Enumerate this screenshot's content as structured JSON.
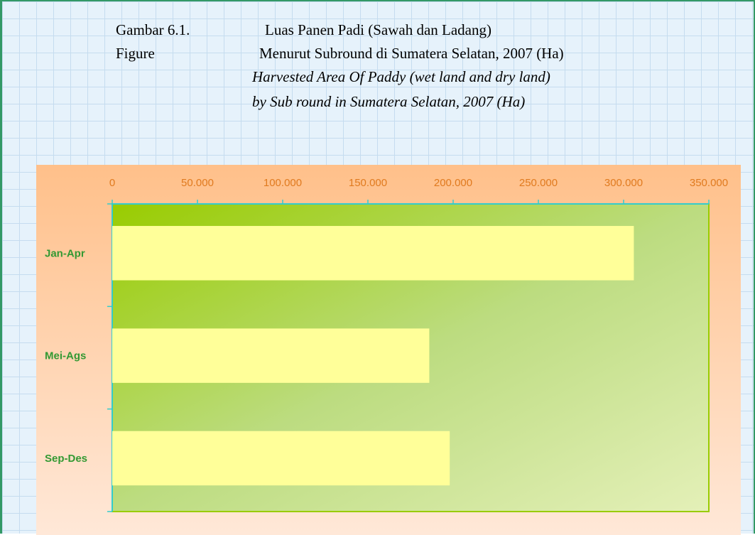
{
  "chart_data": {
    "type": "bar",
    "orientation": "horizontal",
    "title": [
      "Gambar 6.1.",
      "Luas Panen Padi (Sawah dan Ladang)",
      "Figure",
      "Menurut Subround di Sumatera Selatan, 2007 (Ha)",
      "Harvested Area Of Paddy (wet land and dry land)",
      "by Sub round in Sumatera Selatan, 2007 (Ha)"
    ],
    "categories": [
      "Jan-Apr",
      "Mei-Ags",
      "Sep-Des"
    ],
    "values": [
      306000,
      186000,
      198000
    ],
    "color": "#ffff99",
    "xlim": [
      0,
      350000
    ],
    "xticks": [
      0,
      {
        "value": 50000,
        "label": "50.000"
      },
      {
        "value": 100000,
        "label": "100.000"
      },
      {
        "value": 150000,
        "label": "150.000"
      },
      {
        "value": 200000,
        "label": "200.000"
      },
      {
        "value": 250000,
        "label": "250.000"
      },
      {
        "value": 300000,
        "label": "300.000"
      },
      {
        "value": 350000,
        "label": "350.000"
      }
    ]
  }
}
